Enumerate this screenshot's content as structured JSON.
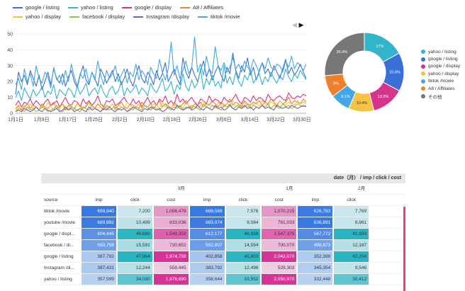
{
  "legend": [
    [
      {
        "label": "google / listing",
        "color": "#3b6fd8"
      },
      {
        "label": "yahoo / listing",
        "color": "#32b4ca"
      },
      {
        "label": "google / display",
        "color": "#d6338c"
      },
      {
        "label": "A8 / Affiliates",
        "color": "#f07f2a"
      }
    ],
    [
      {
        "label": "yahoo / display",
        "color": "#f6c342"
      },
      {
        "label": "facebook / display",
        "color": "#8fc43e"
      },
      {
        "label": "Instagram /display",
        "color": "#7d57c1"
      },
      {
        "label": "tiktok /movie",
        "color": "#43a6e7"
      }
    ]
  ],
  "pager": {
    "prev": "◀",
    "next": "▶"
  },
  "chart_data": [
    {
      "type": "line",
      "ylim": [
        0,
        50
      ],
      "yticks": [
        0,
        10,
        20,
        30,
        40,
        50
      ],
      "xticks": [
        "1月1日",
        "1月9日",
        "1月17日",
        "1月25日",
        "2月2日",
        "2月10日",
        "2月18日",
        "2月26日",
        "3月6日",
        "3月14日",
        "3月22日",
        "3月30日"
      ],
      "series": [
        {
          "name": "google / listing",
          "color": "#3b6fd8",
          "values": [
            12,
            26,
            20,
            24,
            18,
            27,
            22,
            17,
            24,
            15,
            20,
            26,
            18,
            28,
            22,
            19,
            25,
            17,
            23,
            27,
            20,
            16,
            24,
            30,
            21,
            18,
            26,
            22,
            17,
            28,
            24,
            19,
            23,
            27,
            20,
            25,
            18,
            22,
            28,
            21,
            17,
            24,
            30,
            22,
            19,
            26,
            23,
            18,
            27,
            21,
            25,
            32,
            20,
            24,
            28,
            22,
            18,
            35,
            26,
            22,
            29,
            24,
            20,
            27,
            33,
            23,
            28,
            21,
            26,
            30,
            24,
            20,
            29,
            25,
            38,
            27,
            22,
            30,
            26,
            35,
            24,
            29,
            21,
            27,
            32,
            25,
            28,
            23,
            30,
            26,
            22,
            28,
            34,
            25,
            29,
            24,
            27,
            31,
            26,
            22
          ]
        },
        {
          "name": "yahoo / listing",
          "color": "#32b4ca",
          "values": [
            10,
            14,
            8,
            16,
            12,
            9,
            15,
            11,
            13,
            17,
            10,
            14,
            12,
            18,
            9,
            15,
            13,
            11,
            16,
            14,
            10,
            17,
            12,
            15,
            19,
            11,
            14,
            16,
            12,
            18,
            13,
            10,
            15,
            17,
            12,
            14,
            20,
            11,
            16,
            13,
            15,
            18,
            12,
            16,
            14,
            11,
            19,
            15,
            13,
            17,
            22,
            14,
            16,
            20,
            12,
            18,
            15,
            25,
            17,
            14,
            21,
            16,
            19,
            28,
            15,
            22,
            18,
            24,
            17,
            20,
            16,
            30,
            19,
            23,
            18,
            26,
            20,
            17,
            24,
            21,
            27,
            19,
            22,
            25,
            18,
            23,
            20,
            26,
            22,
            19,
            24,
            21,
            28,
            23,
            20,
            25,
            22,
            27,
            24,
            21
          ]
        },
        {
          "name": "google / display",
          "color": "#d6338c",
          "values": [
            5,
            8,
            4,
            7,
            6,
            9,
            5,
            8,
            6,
            4,
            7,
            9,
            5,
            6,
            8,
            4,
            7,
            10,
            6,
            5,
            8,
            7,
            4,
            9,
            6,
            8,
            5,
            7,
            11,
            6,
            4,
            8,
            7,
            9,
            5,
            6,
            8,
            10,
            7,
            5,
            9,
            6,
            8,
            4,
            7,
            10,
            6,
            8,
            5,
            9,
            7,
            11,
            6,
            8,
            5,
            12,
            7,
            9,
            6,
            8,
            10,
            7,
            5,
            9,
            8,
            6,
            11,
            7,
            9,
            8,
            6,
            10,
            8,
            7,
            9,
            12,
            8,
            6,
            10,
            9,
            7,
            11,
            8,
            10,
            9,
            7,
            12,
            9,
            8,
            10,
            11,
            9,
            8,
            13,
            10,
            9,
            11,
            10,
            12,
            11
          ]
        },
        {
          "name": "A8 / Affiliates",
          "color": "#f07f2a",
          "values": [
            3,
            5,
            2,
            4,
            6,
            3,
            5,
            4,
            2,
            6,
            4,
            3,
            5,
            7,
            3,
            4,
            6,
            2,
            5,
            4,
            3,
            6,
            5,
            3,
            4,
            7,
            5,
            3,
            6,
            4,
            2,
            5,
            4,
            6,
            3,
            5,
            7,
            4,
            3,
            6,
            5,
            4,
            3,
            7,
            5,
            4,
            6,
            3,
            5,
            8,
            4,
            6,
            5,
            3,
            7,
            5,
            4,
            6,
            8,
            5,
            3,
            6,
            5,
            7,
            4,
            6,
            5,
            8,
            6,
            4,
            7,
            5,
            6,
            9,
            5,
            7,
            6,
            4,
            8,
            6,
            5,
            7,
            6,
            8,
            5,
            7,
            6,
            9,
            7,
            5,
            8,
            6,
            7,
            10,
            6,
            8,
            7,
            6,
            9,
            7
          ]
        },
        {
          "name": "yahoo / display",
          "color": "#f6c342",
          "values": [
            2,
            4,
            3,
            5,
            2,
            6,
            3,
            4,
            2,
            5,
            3,
            7,
            4,
            2,
            5,
            3,
            6,
            4,
            3,
            5,
            2,
            6,
            4,
            3,
            5,
            7,
            3,
            4,
            2,
            6,
            5,
            3,
            4,
            6,
            2,
            5,
            4,
            3,
            7,
            5,
            3,
            4,
            6,
            3,
            5,
            4,
            2,
            6,
            5,
            3,
            7,
            4,
            5,
            3,
            6,
            4,
            5,
            3,
            7,
            5,
            4,
            6,
            3,
            5,
            8,
            4,
            6,
            5,
            3,
            7,
            5,
            4,
            6,
            5,
            8,
            4,
            6,
            5,
            7,
            4,
            6,
            5,
            7,
            4,
            8,
            6,
            5,
            7,
            6,
            4,
            8,
            6,
            5,
            7,
            6,
            5,
            8,
            6,
            7,
            6
          ]
        },
        {
          "name": "facebook / display",
          "color": "#8fc43e",
          "values": [
            1,
            3,
            2,
            1,
            4,
            2,
            3,
            1,
            2,
            4,
            3,
            1,
            2,
            3,
            5,
            2,
            1,
            3,
            2,
            4,
            3,
            2,
            1,
            4,
            3,
            2,
            5,
            3,
            2,
            1,
            4,
            3,
            2,
            3,
            5,
            2,
            4,
            3,
            1,
            3,
            2,
            4,
            3,
            2,
            5,
            3,
            2,
            4,
            3,
            2,
            4,
            6,
            3,
            2,
            4,
            3,
            5,
            2,
            4,
            3,
            5,
            4,
            3,
            2,
            6,
            4,
            3,
            5,
            4,
            3,
            2,
            5,
            4,
            6,
            3,
            4,
            5,
            3,
            4,
            6,
            3,
            5,
            4,
            3,
            5,
            4,
            6,
            3,
            5,
            4,
            3,
            6,
            4,
            5,
            3,
            4,
            6,
            5,
            4,
            5
          ]
        },
        {
          "name": "Instagram /display",
          "color": "#7d57c1",
          "values": [
            1,
            2,
            1,
            3,
            2,
            1,
            2,
            4,
            2,
            1,
            3,
            2,
            1,
            2,
            3,
            1,
            2,
            4,
            2,
            3,
            1,
            2,
            3,
            2,
            1,
            4,
            2,
            3,
            2,
            1,
            3,
            2,
            4,
            2,
            1,
            3,
            2,
            3,
            1,
            2,
            4,
            3,
            2,
            1,
            3,
            2,
            4,
            3,
            2,
            3,
            1,
            2,
            4,
            3,
            2,
            5,
            3,
            2,
            3,
            4,
            2,
            3,
            5,
            3,
            2,
            4,
            3,
            2,
            5,
            3,
            4,
            2,
            3,
            5,
            3,
            2,
            4,
            3,
            5,
            3,
            4,
            2,
            4,
            3,
            5,
            3,
            4,
            3,
            2,
            5,
            4,
            3,
            4,
            3,
            5,
            4,
            3,
            4,
            5,
            4
          ]
        },
        {
          "name": "tiktok /movie",
          "color": "#43a6e7",
          "values": [
            18,
            22,
            15,
            28,
            20,
            25,
            17,
            30,
            22,
            19,
            26,
            23,
            16,
            29,
            21,
            24,
            18,
            27,
            20,
            31,
            23,
            17,
            25,
            22,
            28,
            19,
            26,
            21,
            33,
            24,
            18,
            27,
            22,
            25,
            30,
            20,
            24,
            28,
            19,
            26,
            23,
            31,
            21,
            27,
            24,
            18,
            29,
            25,
            22,
            34,
            26,
            21,
            28,
            45,
            24,
            30,
            22,
            27,
            33,
            25,
            29,
            48,
            26,
            31,
            24,
            36,
            28,
            25,
            42,
            30,
            27,
            32,
            26,
            29,
            35,
            28,
            31,
            26,
            33,
            29,
            27,
            34,
            30,
            26,
            32,
            28,
            35,
            29,
            27,
            31,
            30,
            26,
            33,
            29,
            36,
            28,
            32,
            30,
            27,
            31
          ]
        }
      ]
    },
    {
      "type": "pie",
      "slices": [
        {
          "name": "yahoo / listing",
          "value": 17.0,
          "label": "17%",
          "color": "#32b4ca"
        },
        {
          "name": "google / listing",
          "value": 15.8,
          "label": "15.8%",
          "color": "#3b6fd8"
        },
        {
          "name": "google / display",
          "value": 13.3,
          "label": "13.3%",
          "color": "#d6338c"
        },
        {
          "name": "yahoo / display",
          "value": 10.4,
          "label": "10.4%",
          "color": "#f6c342"
        },
        {
          "name": "tiktok /movie",
          "value": 8.1,
          "label": "8.1%",
          "color": "#43a6e7"
        },
        {
          "name": "A8 / Affiliates",
          "value": 9.0,
          "label": "9%",
          "color": "#f07f2a"
        },
        {
          "name": "その他",
          "value": 26.4,
          "label": "26.4%",
          "color": "#777777"
        }
      ]
    }
  ],
  "table": {
    "title": "date（月） / imp / click / cost",
    "months": [
      "3月",
      "1月",
      "2月"
    ],
    "columns": [
      "source",
      "imp",
      "click",
      "cost",
      "imp",
      "click",
      "cost",
      "imp",
      "click"
    ],
    "rows": [
      {
        "source": "tiktok /movie",
        "vals": [
          "699,940",
          "7,200",
          "1,056,478",
          "689,569",
          "7,576",
          "1,070,215",
          "626,783",
          "7,769"
        ]
      },
      {
        "source": "youtube /movie",
        "vals": [
          "689,892",
          "10,499",
          "833,036",
          "683,074",
          "9,084",
          "761,033",
          "636,891",
          "8,961"
        ]
      },
      {
        "source": "google / displ...",
        "vals": [
          "604,445",
          "46,680",
          "1,549,359",
          "612,177",
          "46,938",
          "1,547,375",
          "567,772",
          "41,933"
        ]
      },
      {
        "source": "facebook / di...",
        "vals": [
          "550,758",
          "15,591",
          "730,652",
          "552,607",
          "14,594",
          "700,070",
          "499,873",
          "12,187"
        ]
      },
      {
        "source": "google / listing",
        "vals": [
          "387,792",
          "47,964",
          "1,974,758",
          "402,858",
          "45,803",
          "2,042,070",
          "352,398",
          "42,204"
        ]
      },
      {
        "source": "Instagram /di...",
        "vals": [
          "387,431",
          "12,244",
          "558,445",
          "383,792",
          "12,496",
          "529,303",
          "345,354",
          "9,546"
        ]
      },
      {
        "source": "yahoo / listing",
        "vals": [
          "357,599",
          "34,030",
          "1,976,690",
          "358,644",
          "33,552",
          "2,050,970",
          "332,448",
          "30,412"
        ]
      }
    ]
  }
}
